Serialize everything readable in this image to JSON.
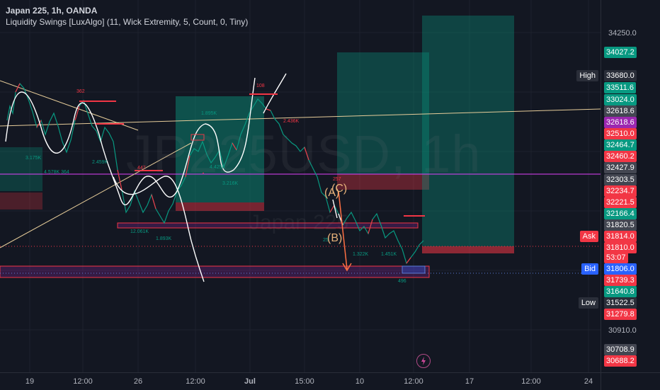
{
  "legend": {
    "title": "Japan 225, 1h, OANDA",
    "indicator": "Liquidity Swings [LuxAlgo] (11, Wick Extremity, 5, Count, 0, Tiny)"
  },
  "watermark": {
    "symbol": "JP225USD, 1h",
    "name": "Japan 225"
  },
  "price_axis": {
    "ticks": [
      "34250.0",
      "30910.0"
    ],
    "labels": [
      {
        "text": "34027.2",
        "color": "#089981"
      },
      {
        "text": "33680.0",
        "color": "#2a2e39",
        "tag": "High"
      },
      {
        "text": "33511.6",
        "color": "#089981"
      },
      {
        "text": "33024.0",
        "color": "#089981"
      },
      {
        "text": "32618.6",
        "color": "#434651"
      },
      {
        "text": "32618.6",
        "color": "#9c27b0"
      },
      {
        "text": "32510.0",
        "color": "#f23645"
      },
      {
        "text": "32464.7",
        "color": "#089981"
      },
      {
        "text": "32460.2",
        "color": "#f23645"
      },
      {
        "text": "32427.9",
        "color": "#434651"
      },
      {
        "text": "32303.5",
        "color": "#434651"
      },
      {
        "text": "32234.7",
        "color": "#f23645"
      },
      {
        "text": "32221.5",
        "color": "#f23645"
      },
      {
        "text": "32166.4",
        "color": "#089981"
      },
      {
        "text": "31820.5",
        "color": "#434651"
      },
      {
        "text": "31814.0",
        "color": "#f23645",
        "tag": "Ask"
      },
      {
        "text": "31810.0",
        "color": "#f23645"
      },
      {
        "text": "53:07",
        "color": "#f23645"
      },
      {
        "text": "31806.0",
        "color": "#2962ff",
        "tag": "Bid"
      },
      {
        "text": "31739.3",
        "color": "#f23645"
      },
      {
        "text": "31640.8",
        "color": "#089981"
      },
      {
        "text": "31522.5",
        "color": "#2a2e39",
        "tag": "Low"
      },
      {
        "text": "31279.8",
        "color": "#f23645"
      },
      {
        "text": "30708.9",
        "color": "#434651"
      },
      {
        "text": "30688.2",
        "color": "#f23645"
      }
    ]
  },
  "time_axis": {
    "labels": [
      "19",
      "12:00",
      "26",
      "12:00",
      "Jul",
      "15:00",
      "10",
      "12:00",
      "17",
      "12:00",
      "24"
    ]
  },
  "chart_annotations": {
    "swing_labels": [
      "362",
      "447",
      "108",
      "2.436K",
      "257",
      "496"
    ],
    "volume_labels": [
      "3.175K",
      "4.578K 364",
      "2.459K",
      "12.061K",
      "1.893K",
      "1.895K",
      "4.425K",
      "3.216K",
      "1.322K",
      "1.451K",
      "25"
    ],
    "wave_labels": [
      "(A)",
      "(C)",
      "(B)"
    ]
  }
}
